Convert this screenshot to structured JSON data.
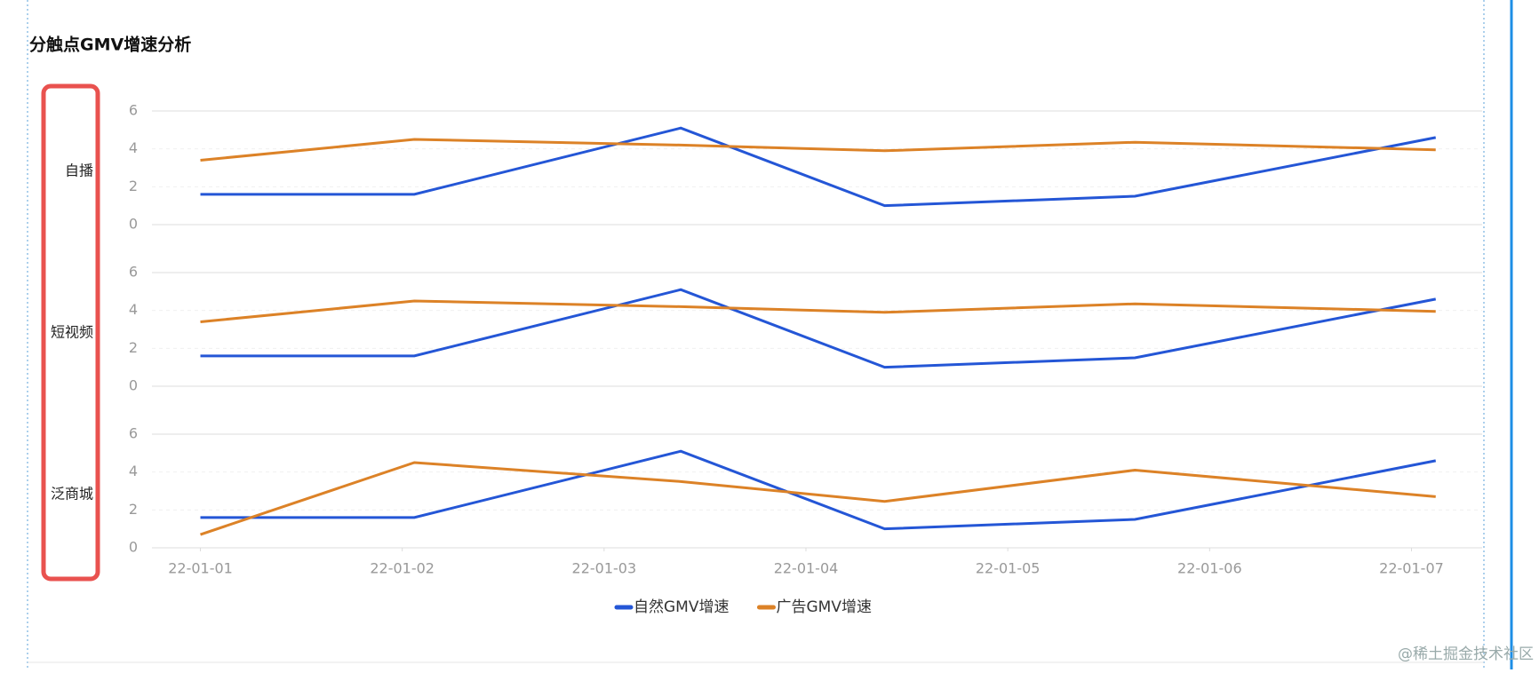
{
  "chart_data": {
    "type": "line",
    "title": "分触点GMV增速分析",
    "x": [
      0,
      1.06,
      2.38,
      3.39,
      4.63,
      6.12
    ],
    "xlim": [
      -0.24,
      6.35
    ],
    "xticks": [
      {
        "value": 0,
        "label": "22-01-01"
      },
      {
        "value": 1,
        "label": "22-01-02"
      },
      {
        "value": 2,
        "label": "22-01-03"
      },
      {
        "value": 3,
        "label": "22-01-04"
      },
      {
        "value": 4,
        "label": "22-01-05"
      },
      {
        "value": 5,
        "label": "22-01-06"
      },
      {
        "value": 6,
        "label": "22-01-07"
      }
    ],
    "ylim": [
      0,
      6
    ],
    "yticks": [
      0,
      2,
      4,
      6
    ],
    "series": [
      {
        "name": "自然GMV增速",
        "color": "#2456d6"
      },
      {
        "name": "广告GMV增速",
        "color": "#dc8227"
      }
    ],
    "facets": [
      {
        "label": "自播",
        "series": [
          {
            "values": [
              1.6,
              1.6,
              5.1,
              1.0,
              1.5,
              4.6
            ]
          },
          {
            "values": [
              3.4,
              4.5,
              4.2,
              3.9,
              4.35,
              3.95
            ]
          }
        ]
      },
      {
        "label": "短视频",
        "series": [
          {
            "values": [
              1.6,
              1.6,
              5.1,
              1.0,
              1.5,
              4.6
            ]
          },
          {
            "values": [
              3.4,
              4.5,
              4.2,
              3.9,
              4.35,
              3.95
            ]
          }
        ]
      },
      {
        "label": "泛商城",
        "series": [
          {
            "values": [
              1.6,
              1.6,
              5.1,
              1.0,
              1.5,
              4.6
            ]
          },
          {
            "values": [
              0.7,
              4.5,
              3.5,
              2.45,
              4.1,
              2.7
            ]
          }
        ]
      }
    ]
  },
  "watermark": "@稀土掘金技术社区"
}
